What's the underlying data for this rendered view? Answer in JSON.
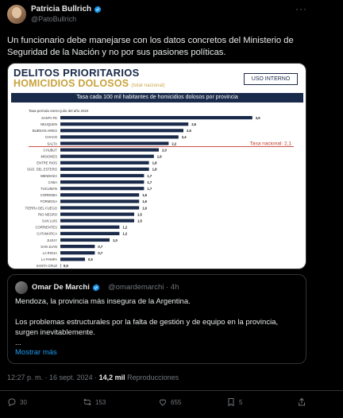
{
  "tweet": {
    "author_name": "Patricia Bullrich",
    "author_handle": "@PatoBullrich",
    "more": "···",
    "text": "Un funcionario debe manejarse con los datos concretos del Ministerio de Seguridad de la Nación y no por sus pasiones políticas.",
    "timestamp": "12:27 p. m. · 16 sept. 2024",
    "views_count": "14,2 mil",
    "views_label": "Reproducciones"
  },
  "image": {
    "title": "DELITOS PRIORITARIOS",
    "subtitle": "HOMICIDIOS DOLOSOS",
    "subtitle_note": "(total nacional)",
    "badge": "USO INTERNO",
    "band": "Tasa cada 100 mil habitantes de homicidios dolosos por provincia",
    "period": "Tasa período enero-julio del año 2024"
  },
  "chart_data": {
    "type": "bar",
    "orientation": "horizontal",
    "categories": [
      "SANTA FE",
      "NEUQUEN",
      "BUENOS AIRES",
      "CHACO",
      "SALTA",
      "CHUBUT",
      "MISIONES",
      "ENTRE RIOS",
      "SGO. DEL ESTERO",
      "MENDOZA",
      "CABA",
      "TUCUMAN",
      "CORDOBA",
      "FORMOSA",
      "TIERRA DEL FUEGO",
      "RIO NEGRO",
      "SAN LUIS",
      "CORRIENTES",
      "CATAMARCA",
      "JUJUY",
      "SAN JUAN",
      "LA RIOJA",
      "LA PAMPA",
      "SANTA CRUZ"
    ],
    "values": [
      3.9,
      2.6,
      2.5,
      2.4,
      2.2,
      2.0,
      1.9,
      1.8,
      1.8,
      1.7,
      1.7,
      1.7,
      1.6,
      1.6,
      1.6,
      1.5,
      1.5,
      1.2,
      1.2,
      1.0,
      0.7,
      0.7,
      0.5,
      0.0
    ],
    "labels": [
      "3,9",
      "2,6",
      "2,5",
      "2,4",
      "2,2",
      "2,0",
      "1,9",
      "1,8",
      "1,8",
      "1,7",
      "1,7",
      "1,7",
      "1,6",
      "1,6",
      "1,6",
      "1,5",
      "1,5",
      "1,2",
      "1,2",
      "1,0",
      "0,7",
      "0,7",
      "0,5",
      "0,0"
    ],
    "reference_line": {
      "value": 2.1,
      "label": "Tasa nacional: 2,1",
      "color": "#c0392b"
    },
    "bar_color": "#1a2a4a"
  },
  "quote": {
    "author_name": "Omar De Marchi",
    "author_handle": "@omardemarchi · 4h",
    "line1": "Mendoza, la provincia más insegura de la Argentina.",
    "line2": "Los problemas estructurales por la falta de gestión y de equipo en la provincia, surgen inevitablemente.",
    "line3": "...",
    "show_more": "Mostrar más"
  },
  "actions": {
    "replies": "30",
    "reposts": "153",
    "likes": "655",
    "bookmarks": "5"
  },
  "colors": {
    "background": "#000000",
    "accent": "#1d9bf0",
    "muted": "#71767b"
  }
}
